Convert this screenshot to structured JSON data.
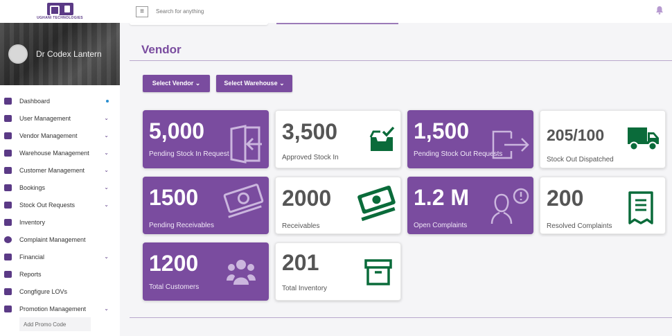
{
  "brand": {
    "logo_text": "UGHANI TECHNOLOGIES"
  },
  "profile": {
    "name": "Dr Codex Lantern"
  },
  "sidebar": {
    "items": [
      {
        "label": "Dashboard",
        "marker": "dot"
      },
      {
        "label": "User Management",
        "marker": "caret"
      },
      {
        "label": "Vendor Management",
        "marker": "caret"
      },
      {
        "label": "Warehouse Management",
        "marker": "caret"
      },
      {
        "label": "Customer Management",
        "marker": "caret"
      },
      {
        "label": "Bookings",
        "marker": "caret"
      },
      {
        "label": "Stock Out Requests",
        "marker": "caret"
      },
      {
        "label": "Inventory",
        "marker": "none"
      },
      {
        "label": "Complaint Management",
        "marker": "none"
      },
      {
        "label": "Financial",
        "marker": "caret"
      },
      {
        "label": "Reports",
        "marker": "none"
      },
      {
        "label": "Congfigure LOVs",
        "marker": "none"
      },
      {
        "label": "Promotion Management",
        "marker": "caret"
      }
    ],
    "sub_item": "Add Promo Code",
    "caret_glyph": "⌄"
  },
  "topbar": {
    "menu_glyph": "≡",
    "search_placeholder": "Search for anything"
  },
  "page": {
    "title": "Vendor",
    "filters": {
      "vendor": "Select Vendor ⌄",
      "warehouse": "Select Warehouse ⌄"
    }
  },
  "cards": [
    {
      "value": "5,000",
      "label": "Pending Stock In Request",
      "style": "purple",
      "icon": "login-door-icon"
    },
    {
      "value": "3,500",
      "label": "Approved Stock In",
      "style": "white",
      "icon": "inbox-check-icon"
    },
    {
      "value": "1,500",
      "label": "Pending Stock Out Requests",
      "style": "purple",
      "icon": "logout-door-icon"
    },
    {
      "value": "205/100",
      "label": "Stock Out Dispatched",
      "style": "white",
      "icon": "truck-icon"
    },
    {
      "value": "1500",
      "label": "Pending Receivables",
      "style": "purple",
      "icon": "money-icon"
    },
    {
      "value": "2000",
      "label": "Receivables",
      "style": "white",
      "icon": "money-icon"
    },
    {
      "value": "1.2 M",
      "label": "Open Complaints",
      "style": "purple",
      "icon": "user-alert-icon"
    },
    {
      "value": "200",
      "label": "Resolved Complaints",
      "style": "white",
      "icon": "receipt-icon"
    },
    {
      "value": "1200",
      "label": "Total Customers",
      "style": "purple",
      "icon": "users-icon"
    },
    {
      "value": "201",
      "label": "Total Inventory",
      "style": "white",
      "icon": "archive-box-icon"
    }
  ],
  "colors": {
    "brand": "#7a4c9f",
    "icon_green": "#0a6b3a",
    "accent_dot": "#2a8fd0"
  }
}
